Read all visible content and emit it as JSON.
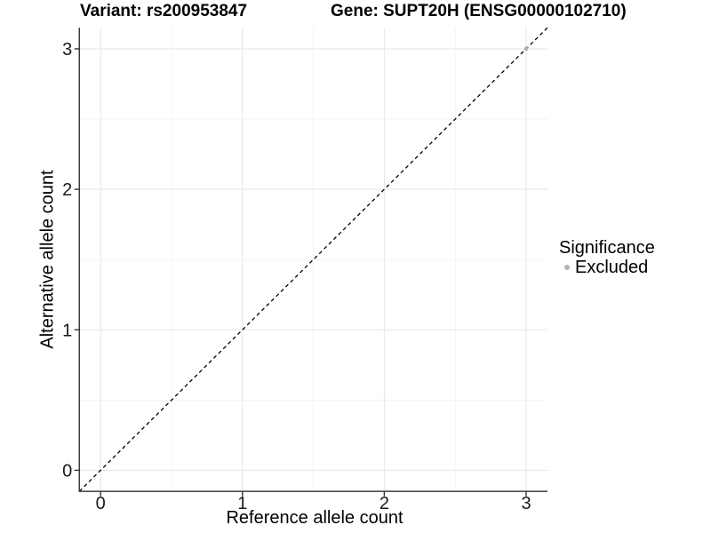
{
  "figure": {
    "title_left": "Variant: rs200953847",
    "title_right": "Gene: SUPT20H (ENSG00000102710)"
  },
  "chart_data": {
    "type": "scatter",
    "title_left": "Variant: rs200953847",
    "title_right": "Gene: SUPT20H (ENSG00000102710)",
    "xlabel": "Reference allele count",
    "ylabel": "Alternative allele count",
    "xlim": [
      -0.15,
      3.15
    ],
    "ylim": [
      -0.15,
      3.15
    ],
    "xticks": [
      0,
      1,
      2,
      3
    ],
    "yticks": [
      0,
      1,
      2,
      3
    ],
    "minor_ticks": [
      0.5,
      1.5,
      2.5
    ],
    "grid": true,
    "reference_line": {
      "type": "identity",
      "style": "dashed",
      "from": [
        -0.15,
        -0.15
      ],
      "to": [
        3.15,
        3.15
      ],
      "color": "#000000"
    },
    "series": [
      {
        "name": "Excluded",
        "color": "#b4b4b4",
        "points": [
          [
            3,
            3
          ]
        ]
      }
    ],
    "legend": {
      "title": "Significance",
      "position": "right",
      "entries": [
        {
          "label": "Excluded",
          "color": "#b4b4b4"
        }
      ]
    },
    "colors": {
      "grid_major": "#e8e8e8",
      "grid_minor": "#f2f2f2",
      "axis_line": "#3c3c3c",
      "tick_mark": "#333333",
      "tick_text": "#1a1a1a",
      "background": "#ffffff"
    }
  }
}
